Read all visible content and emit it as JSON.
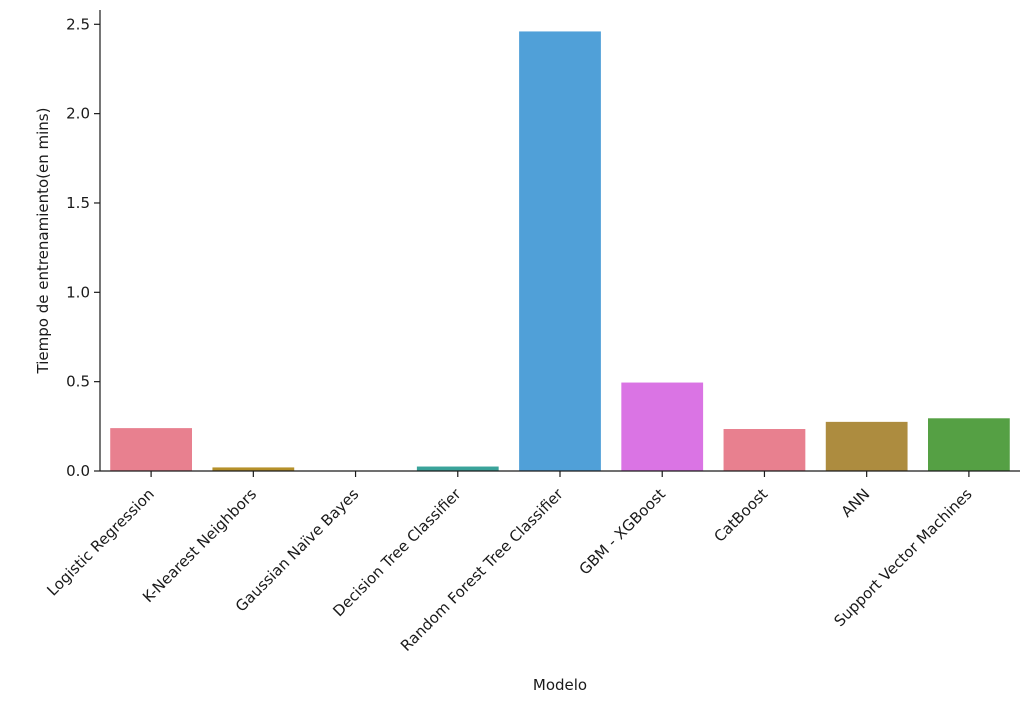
{
  "chart_data": {
    "type": "bar",
    "title": "",
    "xlabel": "Modelo",
    "ylabel": "Tiempo de entrenamiento(en mins)",
    "ylim": [
      0,
      2.58
    ],
    "yticks": [
      "0.0",
      "0.5",
      "1.0",
      "1.5",
      "2.0",
      "2.5"
    ],
    "ytick_values": [
      0,
      0.5,
      1.0,
      1.5,
      2.0,
      2.5
    ],
    "grid": false,
    "legend": "none",
    "categories": [
      "Logistic Regression",
      "K-Nearest Neighbors",
      "Gaussian Naïve Bayes",
      "Decision Tree Classifier",
      "Random Forest Tree Classifier",
      "GBM - XGBoost",
      "CatBoost",
      "ANN",
      "Support Vector Machines"
    ],
    "values": [
      0.24,
      0.02,
      0.002,
      0.025,
      2.46,
      0.495,
      0.235,
      0.275,
      0.295
    ],
    "colors": [
      "#e8808f",
      "#b5902a",
      "#b5902a",
      "#3aa39a",
      "#50a0d8",
      "#da74e4",
      "#e8808f",
      "#ad8c3f",
      "#55a044"
    ]
  }
}
